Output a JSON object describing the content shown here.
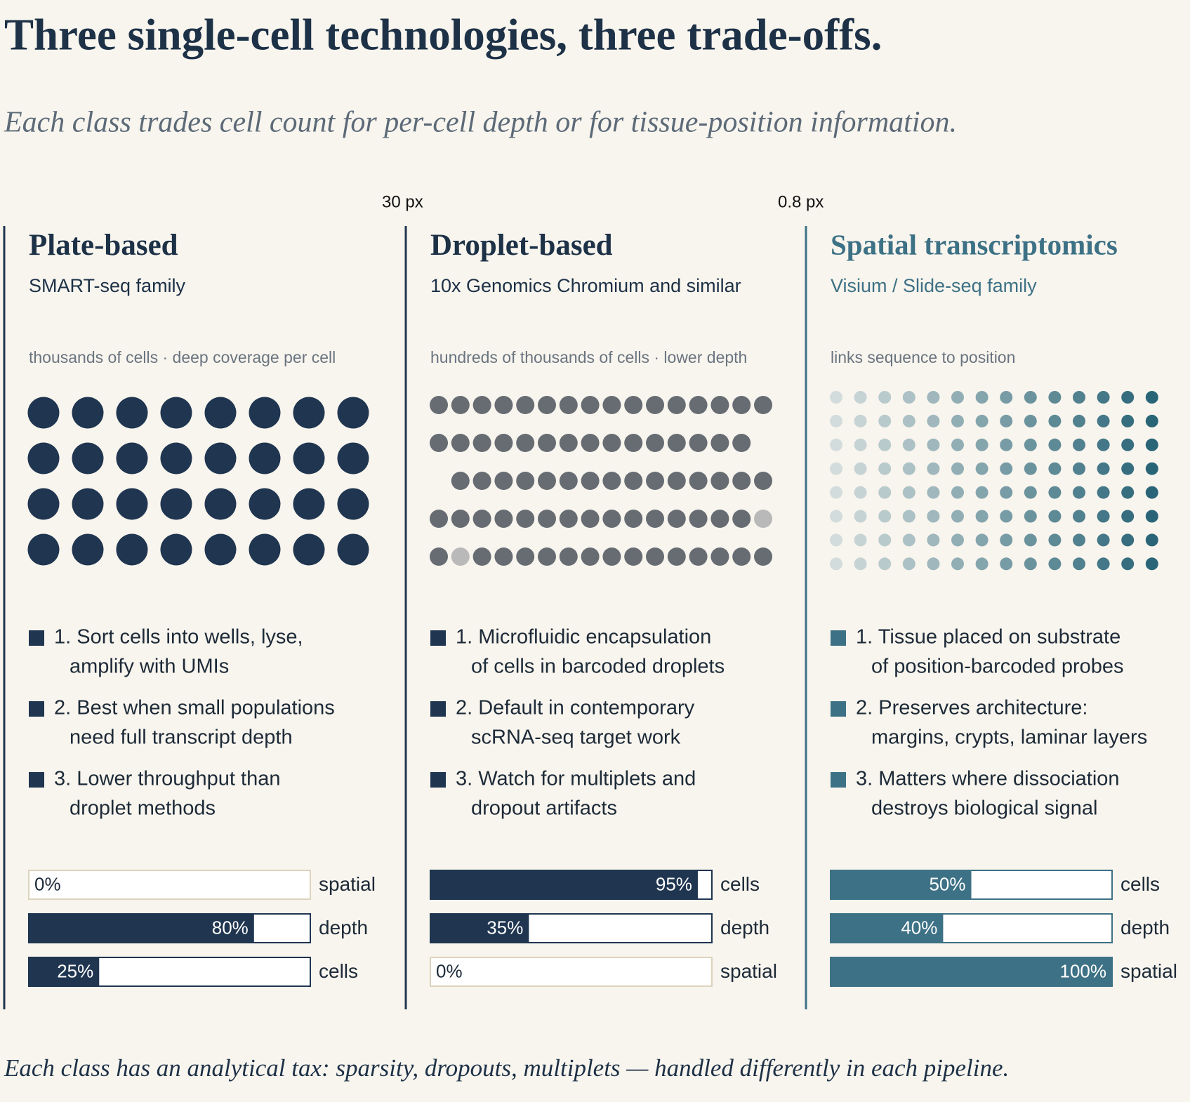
{
  "title": "Three single-cell technologies, three trade-offs.",
  "subtitle": "Each class trades cell count for per-cell depth or for tissue-position information.",
  "annotations": [
    "30 px",
    "0.8 px"
  ],
  "panels": [
    {
      "title": "Plate-based",
      "subtitle": "SMART-seq family",
      "note": "thousands of cells · deep coverage per cell",
      "color": "#1f3550",
      "items": [
        [
          "1. Sort cells into wells, lyse,",
          "amplify with UMIs"
        ],
        [
          "2. Best when small populations",
          "need full transcript depth"
        ],
        [
          "3. Lower throughput than",
          "droplet methods"
        ]
      ],
      "bars": [
        {
          "label": "spatial",
          "value": 0,
          "value_label": "0%"
        },
        {
          "label": "depth",
          "value": 80,
          "value_label": "80%"
        },
        {
          "label": "cells",
          "value": 25,
          "value_label": "25%"
        }
      ]
    },
    {
      "title": "Droplet-based",
      "subtitle": "10x Genomics Chromium and similar",
      "note": "hundreds of thousands of cells · lower depth",
      "color": "#1f3550",
      "items": [
        [
          "1. Microfluidic encapsulation",
          "of cells in barcoded droplets"
        ],
        [
          "2. Default in contemporary",
          "scRNA-seq target work"
        ],
        [
          "3. Watch for multiplets and",
          "dropout artifacts"
        ]
      ],
      "bars": [
        {
          "label": "cells",
          "value": 95,
          "value_label": "95%"
        },
        {
          "label": "depth",
          "value": 35,
          "value_label": "35%"
        },
        {
          "label": "spatial",
          "value": 0,
          "value_label": "0%"
        }
      ]
    },
    {
      "title": "Spatial transcriptomics",
      "subtitle": "Visium / Slide-seq family",
      "note": "links sequence to position",
      "color": "#3d7185",
      "items": [
        [
          "1. Tissue placed on substrate",
          "of position-barcoded probes"
        ],
        [
          "2. Preserves architecture:",
          "margins, crypts, laminar layers"
        ],
        [
          "3. Matters where dissociation",
          "destroys biological signal"
        ]
      ],
      "bars": [
        {
          "label": "cells",
          "value": 50,
          "value_label": "50%"
        },
        {
          "label": "depth",
          "value": 40,
          "value_label": "40%"
        },
        {
          "label": "spatial",
          "value": 100,
          "value_label": "100%"
        }
      ]
    }
  ],
  "footer": "Each class has an analytical tax: sparsity, dropouts, multiplets — handled differently in each pipeline."
}
